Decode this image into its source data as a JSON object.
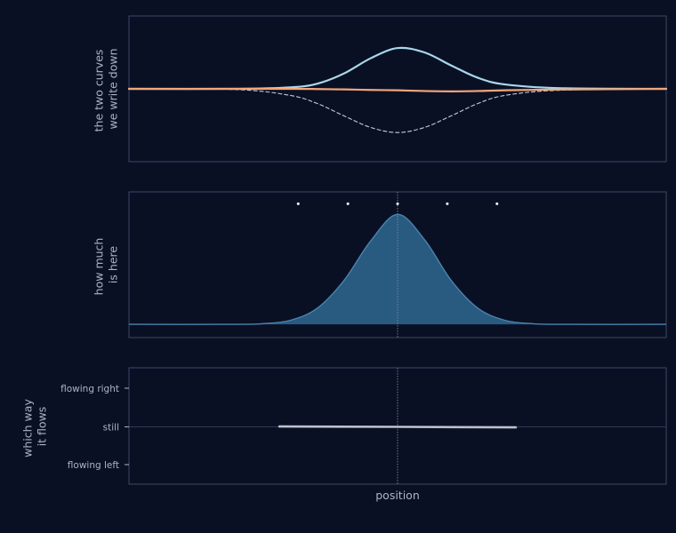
{
  "colors": {
    "background": "#0a1024",
    "frame": "#3a4866",
    "label": "#a9b4c8",
    "curve_a": "#a8d8ea",
    "curve_b": "#f4a67a",
    "dashed": "#c4c9d4",
    "density_fill": "#2b5f86",
    "density_line": "#4a84ad",
    "markers": "#ffffff",
    "flow_line": "#cfd3da"
  },
  "chart_data": [
    {
      "type": "line",
      "ylabel": "the two curves\nwe write down",
      "xlim": [
        -1.0,
        1.0
      ],
      "ylim": [
        -1.0,
        1.0
      ],
      "series": [
        {
          "style": "solid",
          "color": "curve_a",
          "x": [
            -1.0,
            -0.6,
            -0.4,
            -0.3,
            -0.2,
            -0.1,
            0.0,
            0.1,
            0.2,
            0.3,
            0.4,
            0.6,
            1.0
          ],
          "y": [
            0.0,
            0.0,
            0.02,
            0.07,
            0.21,
            0.42,
            0.56,
            0.5,
            0.32,
            0.15,
            0.06,
            0.01,
            0.0
          ]
        },
        {
          "style": "solid",
          "color": "curve_b",
          "x": [
            -1.0,
            -0.4,
            -0.3,
            -0.2,
            -0.1,
            0.0,
            0.1,
            0.2,
            0.3,
            0.4,
            0.6,
            1.0
          ],
          "y": [
            0.0,
            0.0,
            -0.003,
            -0.008,
            -0.015,
            -0.02,
            -0.03,
            -0.035,
            -0.03,
            -0.02,
            -0.01,
            0.0
          ]
        },
        {
          "style": "dashed",
          "color": "dashed",
          "x": [
            -1.0,
            -0.6,
            -0.4,
            -0.3,
            -0.2,
            -0.1,
            0.0,
            0.1,
            0.2,
            0.3,
            0.4,
            0.6,
            1.0
          ],
          "y": [
            0.0,
            -0.01,
            -0.09,
            -0.2,
            -0.37,
            -0.53,
            -0.6,
            -0.53,
            -0.37,
            -0.2,
            -0.09,
            -0.02,
            0.0
          ]
        }
      ]
    },
    {
      "type": "area",
      "ylabel": "how much\nis here",
      "xlim": [
        -1.0,
        1.0
      ],
      "ylim": [
        -0.1,
        1.0
      ],
      "marker_x": 0.0,
      "density": {
        "x": [
          -1.0,
          -0.6,
          -0.5,
          -0.4,
          -0.3,
          -0.2,
          -0.1,
          0.0,
          0.1,
          0.2,
          0.3,
          0.4,
          0.5,
          0.6,
          1.0
        ],
        "y": [
          0.0,
          0.0,
          0.005,
          0.03,
          0.12,
          0.33,
          0.63,
          0.83,
          0.64,
          0.33,
          0.12,
          0.03,
          0.005,
          0.0,
          0.0
        ]
      },
      "dots": {
        "x": [
          -0.37,
          -0.185,
          0.0,
          0.185,
          0.37
        ],
        "y": 0.91
      }
    },
    {
      "type": "line",
      "ylabel": "which way\nit flows",
      "xlabel": "position",
      "xlim": [
        -1.0,
        1.0
      ],
      "ylim": [
        -1.0,
        1.0
      ],
      "yticks": {
        "values": [
          1.0,
          0.0,
          -1.0
        ],
        "labels": [
          "flowing right",
          "still",
          "flowing left"
        ]
      },
      "marker_x": 0.0,
      "flow": {
        "x": [
          -0.44,
          0.0,
          0.44
        ],
        "y": [
          0.01,
          0.0,
          -0.015
        ]
      }
    }
  ]
}
